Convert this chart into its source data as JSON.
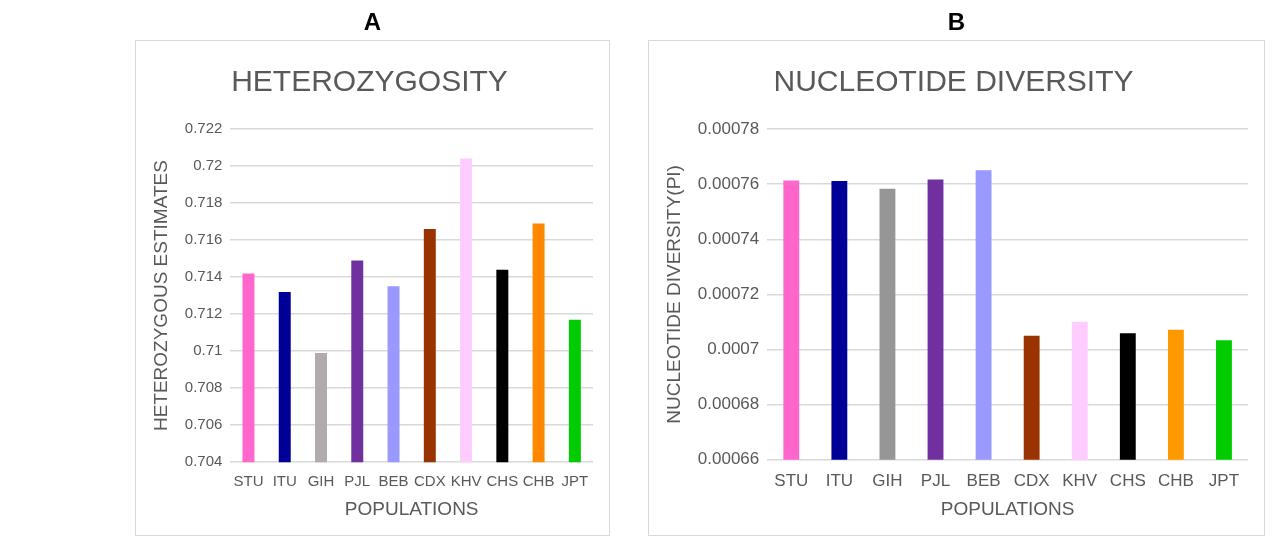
{
  "chart_data": [
    {
      "type": "bar",
      "title": "HETEROZYGOSITY",
      "xlabel": "POPULATIONS",
      "ylabel": "HETEROZYGOUS ESTIMATES",
      "annotations": [
        "A"
      ],
      "categories": [
        "STU",
        "ITU",
        "GIH",
        "PJL",
        "BEB",
        "CDX",
        "KHV",
        "CHS",
        "CHB",
        "JPT"
      ],
      "values": [
        0.7142,
        0.7132,
        0.7099,
        0.7149,
        0.7135,
        0.7166,
        0.7204,
        0.7144,
        0.7169,
        0.7117
      ],
      "colors": [
        "#ff66cc",
        "#000099",
        "#b0acac",
        "#7030a0",
        "#9999ff",
        "#993300",
        "#ffccff",
        "#000000",
        "#ff8800",
        "#00cc00"
      ],
      "ylim": [
        0.704,
        0.722
      ],
      "yticks": [
        0.704,
        0.706,
        0.708,
        0.71,
        0.712,
        0.714,
        0.716,
        0.718,
        0.72,
        0.722
      ],
      "grid": "y"
    },
    {
      "type": "bar",
      "title": "NUCLEOTIDE DIVERSITY",
      "xlabel": "POPULATIONS",
      "ylabel": "NUCLEOTIDE DIVERSITY(PI)",
      "annotations": [
        "B"
      ],
      "categories": [
        "STU",
        "ITU",
        "GIH",
        "PJL",
        "BEB",
        "CDX",
        "KHV",
        "CHS",
        "CHB",
        "JPT"
      ],
      "values": [
        0.0007613,
        0.0007611,
        0.0007583,
        0.0007617,
        0.000765,
        0.000705,
        0.0007101,
        0.0007059,
        0.0007072,
        0.0007034
      ],
      "colors": [
        "#ff66cc",
        "#000099",
        "#969696",
        "#7030a0",
        "#9999ff",
        "#993300",
        "#ffccff",
        "#000000",
        "#ff9900",
        "#00cc00"
      ],
      "ylim": [
        0.00066,
        0.00078
      ],
      "yticks": [
        0.00066,
        0.00068,
        0.0007,
        0.00072,
        0.00074,
        0.00076,
        0.00078
      ],
      "grid": "y"
    }
  ]
}
